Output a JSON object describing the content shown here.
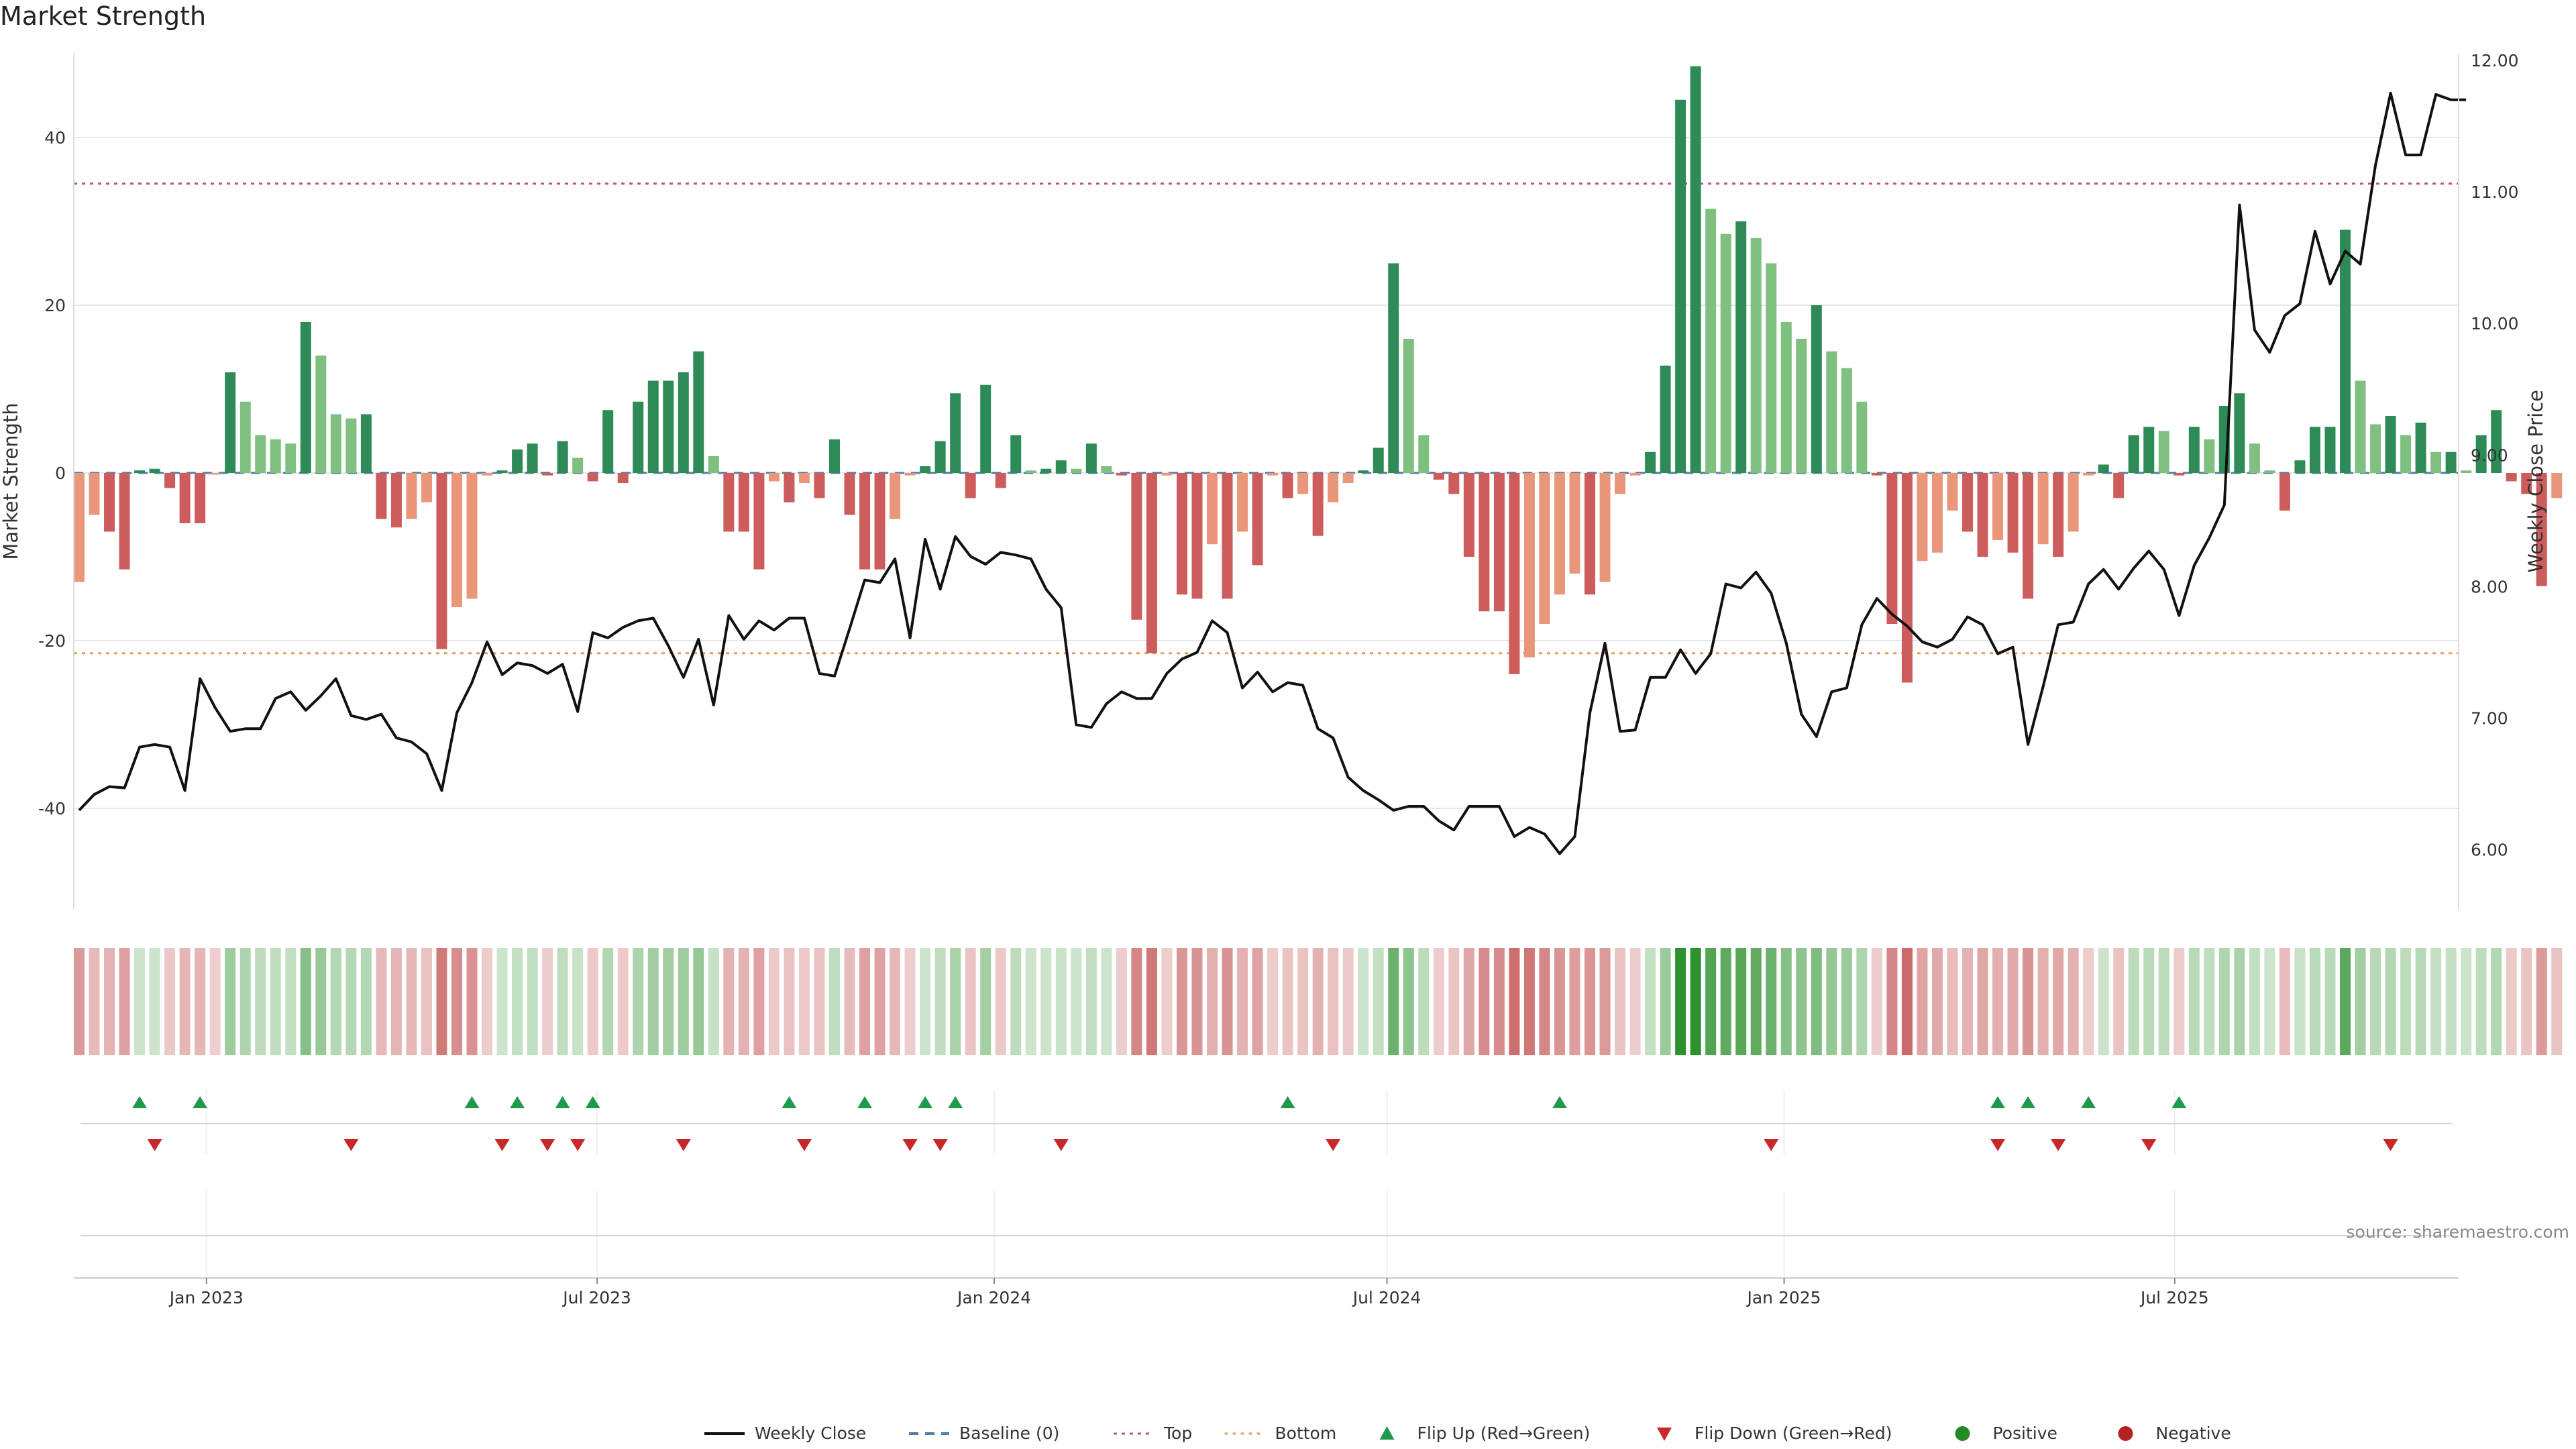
{
  "title": "Market Strength",
  "source": "source: sharemaestro.com",
  "colors": {
    "strong_pos": "#2e8b57",
    "weak_pos": "#7fbf7f",
    "strong_neg": "#cd5c5c",
    "weak_neg": "#e9967a",
    "price": "#111111",
    "top": "#c0508a",
    "bottom": "#e0a060",
    "flip_up": "#1f9a4a",
    "flip_down": "#c82828",
    "positive": "#228b22",
    "negative": "#b22222",
    "baseline": "#4f7fae"
  },
  "chart_data": {
    "type": "bar",
    "title": "Market Strength",
    "ylabel": "Market Strength",
    "y2label": "Weekly Close Price",
    "ylim": [
      -52,
      50
    ],
    "y2lim": [
      5.55,
      12.05
    ],
    "yticks": [
      -40,
      -20,
      0,
      20,
      40
    ],
    "y2ticks": [
      "6.00",
      "7.00",
      "8.00",
      "9.00",
      "10.00",
      "11.00",
      "12.00"
    ],
    "top_line": 34.5,
    "bottom_line": -21.5,
    "start_date": "2022-11-03",
    "x_months": [
      {
        "label": "Jan 2023",
        "date": "2023-01-01"
      },
      {
        "label": "Jul 2023",
        "date": "2023-07-01"
      },
      {
        "label": "Jan 2024",
        "date": "2024-01-01"
      },
      {
        "label": "Jul 2024",
        "date": "2024-07-01"
      },
      {
        "label": "Jan 2025",
        "date": "2025-01-01"
      },
      {
        "label": "Jul 2025",
        "date": "2025-07-01"
      }
    ],
    "strength": [
      -13,
      -5,
      -7,
      -11.5,
      0.3,
      0.5,
      -1.8,
      -6,
      -6,
      -0.2,
      12,
      8.5,
      4.5,
      4,
      3.5,
      18,
      14,
      7,
      6.5,
      7,
      -5.5,
      -6.5,
      -5.5,
      -3.5,
      -21,
      -16,
      -15,
      -0.3,
      0.3,
      2.8,
      3.5,
      -0.3,
      3.8,
      1.8,
      -1,
      7.5,
      -1.2,
      8.5,
      11,
      11,
      12,
      14.5,
      2,
      -7,
      -7,
      -11.5,
      -1,
      -3.5,
      -1.2,
      -3,
      4,
      -5,
      -11.5,
      -11.5,
      -5.5,
      -0.3,
      0.8,
      3.8,
      9.5,
      -3,
      10.5,
      -1.8,
      4.5,
      0.3,
      0.5,
      1.5,
      0.5,
      3.5,
      0.8,
      -0.3,
      -17.5,
      -21.5,
      -0.3,
      -14.5,
      -15,
      -8.5,
      -15,
      -7,
      -11,
      -0.3,
      -3,
      -2.5,
      -7.5,
      -3.5,
      -1.2,
      0.3,
      3,
      25,
      16,
      4.5,
      -0.8,
      -2.5,
      -10,
      -16.5,
      -16.5,
      -24,
      -22,
      -18,
      -14.5,
      -12,
      -14.5,
      -13,
      -2.5,
      -0.3,
      2.5,
      12.8,
      44.5,
      48.5,
      31.5,
      28.5,
      30,
      28,
      25,
      18,
      16,
      20,
      14.5,
      12.5,
      8.5,
      -0.3,
      -18,
      -25,
      -10.5,
      -9.5,
      -4.5,
      -7,
      -10,
      -8,
      -9.5,
      -15,
      -8.5,
      -10,
      -7,
      -0.3,
      1,
      -3,
      4.5,
      5.5,
      5,
      -0.3,
      5.5,
      4,
      8,
      9.5,
      3.5,
      0.3,
      -4.5,
      1.5,
      5.5,
      5.5,
      29,
      11,
      5.8,
      6.8,
      4.5,
      6,
      2.5,
      2.5,
      0.3,
      4.5,
      7.5,
      -1,
      -2.5,
      -13.5,
      -3
    ],
    "price": [
      6.3,
      6.42,
      6.48,
      6.47,
      6.78,
      6.8,
      6.78,
      6.45,
      7.3,
      7.08,
      6.9,
      6.92,
      6.92,
      7.15,
      7.2,
      7.06,
      7.17,
      7.3,
      7.02,
      6.99,
      7.03,
      6.85,
      6.82,
      6.73,
      6.45,
      7.04,
      7.27,
      7.58,
      7.33,
      7.42,
      7.4,
      7.34,
      7.41,
      7.05,
      7.65,
      7.61,
      7.69,
      7.74,
      7.76,
      7.55,
      7.31,
      7.6,
      7.1,
      7.78,
      7.6,
      7.74,
      7.67,
      7.76,
      7.76,
      7.34,
      7.32,
      7.68,
      8.05,
      8.03,
      8.21,
      7.61,
      8.36,
      7.98,
      8.38,
      8.23,
      8.17,
      8.26,
      8.24,
      8.21,
      7.98,
      7.84,
      6.95,
      6.93,
      7.11,
      7.2,
      7.15,
      7.15,
      7.34,
      7.45,
      7.5,
      7.74,
      7.65,
      7.23,
      7.35,
      7.2,
      7.27,
      7.25,
      6.92,
      6.85,
      6.55,
      6.45,
      6.38,
      6.3,
      6.33,
      6.33,
      6.22,
      6.15,
      6.33,
      6.33,
      6.33,
      6.1,
      6.17,
      6.12,
      5.97,
      6.1,
      7.04,
      7.57,
      6.9,
      6.91,
      7.31,
      7.31,
      7.52,
      7.34,
      7.49,
      8.02,
      7.99,
      8.11,
      7.95,
      7.57,
      7.03,
      6.86,
      7.2,
      7.23,
      7.71,
      7.91,
      7.79,
      7.7,
      7.58,
      7.54,
      7.6,
      7.77,
      7.71,
      7.49,
      7.54,
      6.8,
      7.24,
      7.71,
      7.73,
      8.02,
      8.13,
      7.98,
      8.14,
      8.27,
      8.13,
      7.78,
      8.16,
      8.37,
      8.62,
      10.9,
      9.95,
      9.78,
      10.06,
      10.15,
      10.7,
      10.3,
      10.55,
      10.45,
      11.2,
      11.75,
      11.28,
      11.28,
      11.74,
      11.7,
      11.7
    ]
  },
  "flips": {
    "up": [
      4,
      8,
      26,
      29,
      32,
      34,
      47,
      52,
      56,
      58,
      80,
      98,
      127,
      129,
      133,
      139
    ],
    "down": [
      5,
      18,
      28,
      31,
      33,
      40,
      48,
      55,
      57,
      65,
      83,
      112,
      127,
      131,
      137,
      153
    ]
  },
  "legend": [
    {
      "key": "weekly-close",
      "label": "Weekly Close"
    },
    {
      "key": "baseline",
      "label": "Baseline (0)"
    },
    {
      "key": "top",
      "label": "Top"
    },
    {
      "key": "bottom",
      "label": "Bottom"
    },
    {
      "key": "flip-up",
      "label": "Flip Up (Red→Green)"
    },
    {
      "key": "flip-down",
      "label": "Flip Down (Green→Red)"
    },
    {
      "key": "positive",
      "label": "Positive"
    },
    {
      "key": "negative",
      "label": "Negative"
    }
  ]
}
